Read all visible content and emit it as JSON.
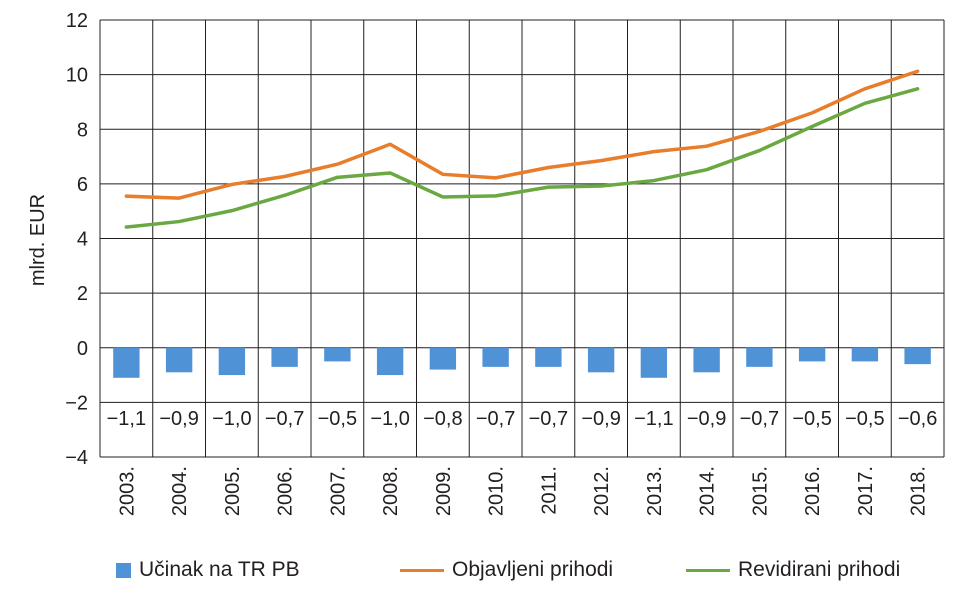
{
  "chart_data": {
    "type": "bar+line",
    "ylabel": "mlrd. EUR",
    "ylim": [
      -4,
      12
    ],
    "yticks": [
      -4,
      -2,
      0,
      2,
      4,
      6,
      8,
      10,
      12
    ],
    "ytick_labels": [
      "−4",
      "−2",
      "0",
      "2",
      "4",
      "6",
      "8",
      "10",
      "12"
    ],
    "categories": [
      "2003.",
      "2004.",
      "2005.",
      "2006.",
      "2007.",
      "2008.",
      "2009.",
      "2010.",
      "2011.",
      "2012.",
      "2013.",
      "2014.",
      "2015.",
      "2016.",
      "2017.",
      "2018."
    ],
    "grid": true,
    "series": [
      {
        "name": "Učinak na TR PB",
        "kind": "bar",
        "color": "#4f93d6",
        "values": [
          -1.1,
          -0.9,
          -1.0,
          -0.7,
          -0.5,
          -1.0,
          -0.8,
          -0.7,
          -0.7,
          -0.9,
          -1.1,
          -0.9,
          -0.7,
          -0.5,
          -0.5,
          -0.6
        ],
        "labels": [
          "−1,1",
          "−0,9",
          "−1,0",
          "−0,7",
          "−0,5",
          "−1,0",
          "−0,8",
          "−0,7",
          "−0,7",
          "−0,9",
          "−1,1",
          "−0,9",
          "−0,7",
          "−0,5",
          "−0,5",
          "−0,6"
        ]
      },
      {
        "name": "Objavljeni prihodi",
        "kind": "line",
        "color": "#e87d2c",
        "values": [
          5.55,
          5.48,
          5.98,
          6.27,
          6.72,
          7.45,
          6.35,
          6.22,
          6.6,
          6.85,
          7.18,
          7.38,
          7.92,
          8.6,
          9.48,
          10.12
        ]
      },
      {
        "name": "Revidirani prihodi",
        "kind": "line",
        "color": "#6aa842",
        "values": [
          4.42,
          4.62,
          5.02,
          5.58,
          6.24,
          6.4,
          5.52,
          5.56,
          5.88,
          5.92,
          6.12,
          6.52,
          7.22,
          8.1,
          8.95,
          9.48
        ]
      }
    ],
    "legend_position": "bottom"
  }
}
